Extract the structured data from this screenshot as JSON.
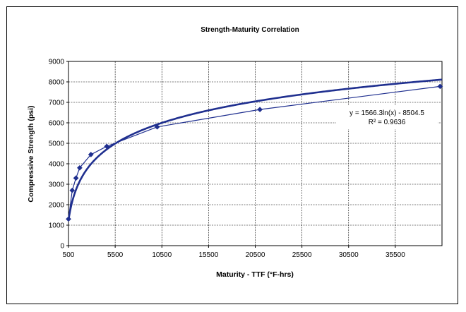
{
  "chart_data": {
    "type": "scatter",
    "title": "Strength-Maturity Correlation",
    "xlabel": "Maturity - TTF (°F-hrs)",
    "ylabel": "Compressive Strength (psi)",
    "xlim": [
      500,
      40500
    ],
    "ylim": [
      0,
      9000
    ],
    "x_ticks": [
      500,
      5500,
      10500,
      15500,
      20500,
      25500,
      30500,
      35500
    ],
    "y_ticks": [
      0,
      1000,
      2000,
      3000,
      4000,
      5000,
      6000,
      7000,
      8000,
      9000
    ],
    "grid": true,
    "legend": "none",
    "colors": {
      "series": "#1f2f8f",
      "grid": "#000000"
    },
    "series": [
      {
        "values_x": [
          500,
          900,
          1300,
          1700,
          2900,
          4600,
          10000,
          21000,
          40300
        ],
        "values_y": [
          1300,
          2700,
          3300,
          3800,
          4450,
          4850,
          5800,
          6650,
          7780
        ],
        "marker": "diamond",
        "connected": true
      }
    ],
    "trendline": {
      "type": "logarithmic",
      "a": 1566.3,
      "b": -8504.5,
      "equation": "y = 1566.3ln(x) - 8504.5",
      "r_squared": "R² = 0.9636"
    }
  }
}
